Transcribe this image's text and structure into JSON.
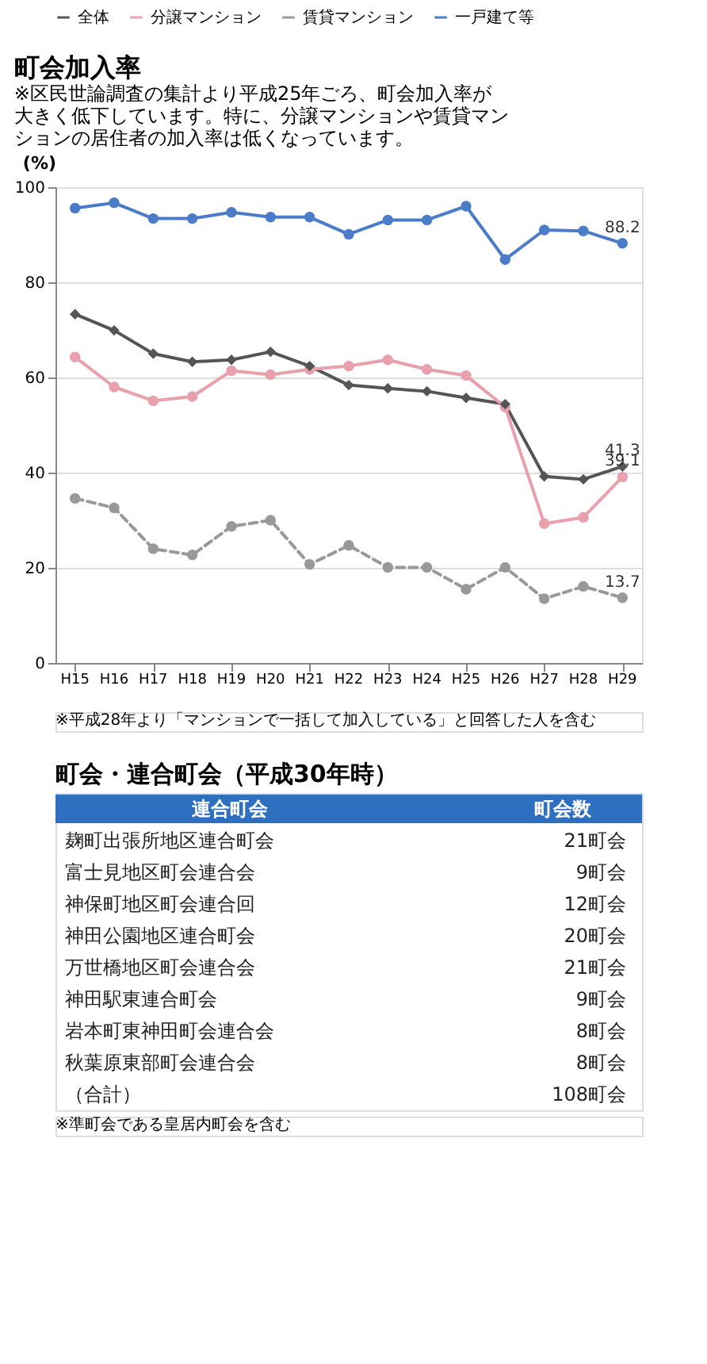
{
  "chart_data": [
    {
      "type": "line",
      "title": "町会加入率",
      "subtitle": "※区民世論調査の集計より平成25年ごろ、町会加入率が大きく低下しています。特に、分譲マンションや賃貸マンションの居住者の加入率は低くなっています。",
      "ylabel": "(%)",
      "categories": [
        "H15",
        "H16",
        "H17",
        "H18",
        "H19",
        "H20",
        "H21",
        "H22",
        "H23",
        "H24",
        "H25",
        "H26",
        "H27",
        "H28",
        "H29"
      ],
      "series": [
        {
          "name": "全体",
          "color": "#555555",
          "marker": "diamond",
          "line_style": "solid",
          "values": [
            73.3,
            69.9,
            65.0,
            63.3,
            63.7,
            65.4,
            62.4,
            58.4,
            57.7,
            57.1,
            55.7,
            54.4,
            39.2,
            38.6,
            41.3
          ],
          "value_labels": [
            null,
            null,
            null,
            null,
            null,
            null,
            null,
            null,
            null,
            null,
            null,
            null,
            null,
            null,
            "41.3"
          ]
        },
        {
          "name": "分譲マンション",
          "color": "#e8a0ac",
          "marker": "circle",
          "line_style": "solid",
          "values": [
            64.3,
            58.0,
            55.1,
            56.0,
            61.4,
            60.6,
            61.7,
            62.4,
            63.7,
            61.7,
            60.4,
            53.8,
            29.3,
            30.6,
            39.1
          ],
          "value_labels": [
            null,
            null,
            null,
            null,
            null,
            null,
            null,
            null,
            null,
            null,
            null,
            null,
            null,
            null,
            "39.1"
          ]
        },
        {
          "name": "賃貸マンション",
          "color": "#999999",
          "marker": "circle",
          "line_style": "dashed",
          "values": [
            34.6,
            32.6,
            24.0,
            22.7,
            28.7,
            30.0,
            20.7,
            24.7,
            20.1,
            20.1,
            15.5,
            20.1,
            13.5,
            16.1,
            13.7
          ],
          "value_labels": [
            null,
            null,
            null,
            null,
            null,
            null,
            null,
            null,
            null,
            null,
            null,
            null,
            null,
            null,
            "13.7"
          ]
        },
        {
          "name": "一戸建て等",
          "color": "#4a7cc9",
          "marker": "circle",
          "line_style": "solid",
          "values": [
            95.6,
            96.7,
            93.4,
            93.4,
            94.7,
            93.7,
            93.7,
            90.1,
            93.1,
            93.1,
            96.0,
            84.8,
            91.0,
            90.8,
            88.2
          ],
          "value_labels": [
            null,
            null,
            null,
            null,
            null,
            null,
            null,
            null,
            null,
            null,
            null,
            null,
            null,
            null,
            "88.2"
          ]
        }
      ],
      "ylim": [
        0,
        100
      ],
      "yticks": [
        0,
        20,
        40,
        60,
        80,
        100
      ],
      "grid": "y",
      "legend": "top",
      "annotations": [
        "※平成28年より「マンションで一括して加入している」と回答した人を含む"
      ]
    },
    {
      "type": "other",
      "title": "町会・連合町会（平成30年時）",
      "categories": [
        "麹町出張所地区連合町会",
        "富士見地区町会連合会",
        "神保町地区町会連合回",
        "神田公園地区連合町会",
        "万世橋地区町会連合会",
        "神田駅東連合町会",
        "岩本町東神田町会連合会",
        "秋葉原東部町会連合会",
        "（合計）"
      ],
      "value_labels": [
        "21町会",
        "9町会",
        "12町会",
        "20町会",
        "21町会",
        "9町会",
        "8町会",
        "8町会",
        "108町会"
      ],
      "color": "#2f6fc0",
      "annotations": [
        "連合町会",
        "町会数",
        "※準町会である皇居内町会を含む"
      ]
    }
  ]
}
